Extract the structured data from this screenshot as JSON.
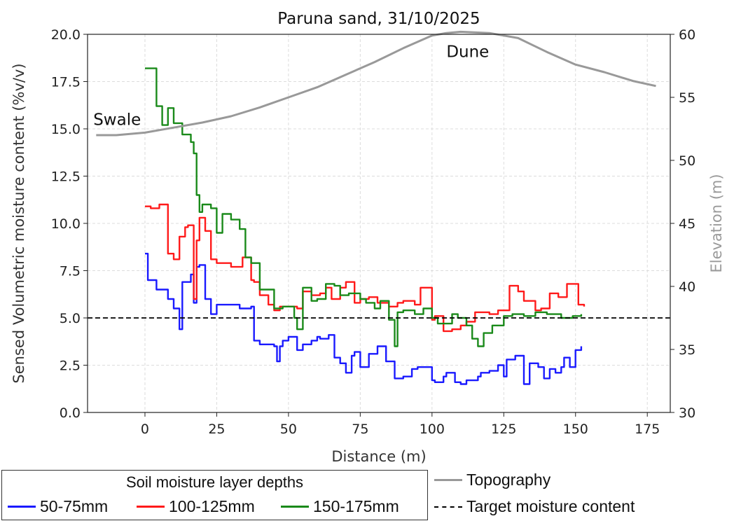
{
  "chart_data": {
    "type": "line",
    "title": "Paruna sand, 31/10/2025",
    "xlabel": "Distance (m)",
    "ylabel": "Sensed Volumetric moisture content (%v/v)",
    "y2label": "Elevation (m)",
    "xlim": [
      -20,
      183
    ],
    "ylim": [
      0,
      20
    ],
    "y2lim": [
      30,
      60
    ],
    "x_ticks": [
      0,
      25,
      50,
      75,
      100,
      125,
      150,
      175
    ],
    "y_ticks": [
      0.0,
      2.5,
      5.0,
      7.5,
      10.0,
      12.5,
      15.0,
      17.5,
      20.0
    ],
    "y_tick_labels": [
      "0.0",
      "2.5",
      "5.0",
      "7.5",
      "10.0",
      "12.5",
      "15.0",
      "17.5",
      "20.0"
    ],
    "y2_ticks": [
      30,
      35,
      40,
      45,
      50,
      55,
      60
    ],
    "grid": true,
    "annotations": [
      {
        "text": "Swale",
        "x": -18,
        "y": 15.2
      },
      {
        "text": "Dune",
        "x": 105,
        "y": 18.8
      }
    ],
    "target_moisture": 5.0,
    "legend": {
      "title": "Soil moisture layer depths",
      "placement": "bottom-left outside"
    },
    "series": [
      {
        "name": "50-75mm",
        "color": "#1a1aff",
        "axis": "left",
        "step": true,
        "x": [
          0,
          1,
          4,
          8,
          10,
          12,
          13,
          16,
          17,
          18,
          19,
          21,
          23,
          25,
          28,
          33,
          37,
          38,
          40,
          45,
          46,
          47,
          48,
          50,
          53,
          55,
          58,
          60,
          61,
          64,
          66,
          68,
          70,
          72,
          73,
          75,
          78,
          81,
          84,
          87,
          90,
          93,
          95,
          100,
          101,
          104,
          105,
          108,
          110,
          112,
          116,
          117,
          120,
          123,
          125,
          126,
          129,
          132,
          134,
          137,
          139,
          141,
          143,
          145,
          146,
          148,
          150,
          152
        ],
        "y": [
          8.4,
          7.0,
          6.5,
          6.0,
          5.5,
          4.4,
          6.9,
          7.3,
          5.8,
          7.7,
          7.8,
          6.0,
          5.2,
          5.7,
          5.7,
          5.5,
          5.6,
          3.8,
          3.6,
          3.5,
          2.7,
          3.5,
          3.8,
          4.0,
          3.3,
          3.6,
          3.8,
          4.0,
          3.9,
          4.1,
          2.9,
          2.6,
          2.1,
          3.0,
          3.2,
          2.4,
          3.1,
          3.5,
          2.7,
          1.8,
          1.9,
          2.3,
          2.4,
          1.7,
          1.6,
          1.9,
          2.1,
          1.6,
          1.5,
          1.7,
          1.9,
          2.1,
          2.2,
          2.5,
          1.9,
          2.8,
          3.0,
          1.5,
          2.6,
          2.4,
          1.8,
          2.3,
          2.1,
          2.4,
          2.9,
          2.4,
          3.3,
          3.5
        ]
      },
      {
        "name": "100-125mm",
        "color": "#ff1a1a",
        "axis": "left",
        "step": true,
        "x": [
          0,
          2,
          5,
          8,
          10,
          12,
          14,
          15,
          17,
          18,
          19,
          21,
          23,
          25,
          30,
          34,
          37,
          38,
          40,
          43,
          45,
          47,
          50,
          53,
          55,
          58,
          61,
          63,
          65,
          68,
          70,
          73,
          75,
          78,
          81,
          85,
          88,
          90,
          94,
          96,
          100,
          101,
          104,
          107,
          110,
          112,
          115,
          120,
          123,
          127,
          130,
          132,
          136,
          138,
          141,
          144,
          147,
          151,
          153
        ],
        "y": [
          10.9,
          10.8,
          11.0,
          8.4,
          8.1,
          9.3,
          9.8,
          9.9,
          6.0,
          9.1,
          10.3,
          9.6,
          8.1,
          7.9,
          7.7,
          8.2,
          7.0,
          6.9,
          6.2,
          5.7,
          5.4,
          5.6,
          5.6,
          5.5,
          6.4,
          6.2,
          6.3,
          6.6,
          6.0,
          6.6,
          6.9,
          5.8,
          6.0,
          6.1,
          5.8,
          5.6,
          5.8,
          5.9,
          5.7,
          6.6,
          4.9,
          5.1,
          4.3,
          4.4,
          4.6,
          4.8,
          5.3,
          5.2,
          5.4,
          6.7,
          6.4,
          5.9,
          5.4,
          5.5,
          6.3,
          6.1,
          6.8,
          5.7,
          5.6
        ]
      },
      {
        "name": "150-175mm",
        "color": "#1a8a1a",
        "axis": "left",
        "step": true,
        "x": [
          0,
          4,
          6,
          8,
          10,
          13,
          16,
          17,
          18,
          19,
          20,
          23,
          25,
          27,
          30,
          33,
          35,
          37,
          40,
          45,
          48,
          52,
          53,
          55,
          58,
          60,
          63,
          66,
          68,
          71,
          75,
          77,
          80,
          82,
          85,
          87,
          88,
          90,
          94,
          97,
          100,
          102,
          107,
          109,
          112,
          114,
          116,
          118,
          121,
          125,
          128,
          132,
          136,
          140,
          145,
          149,
          152
        ],
        "y": [
          18.2,
          16.2,
          15.2,
          16.1,
          15.3,
          14.7,
          14.3,
          13.7,
          11.5,
          10.6,
          11.0,
          10.8,
          9.5,
          10.5,
          10.2,
          9.7,
          8.2,
          7.9,
          6.5,
          5.5,
          5.6,
          5.0,
          4.4,
          6.6,
          5.9,
          6.0,
          6.8,
          6.7,
          6.2,
          6.3,
          6.0,
          5.8,
          5.5,
          5.9,
          4.9,
          3.5,
          5.3,
          5.4,
          5.2,
          5.5,
          5.0,
          4.7,
          5.2,
          5.0,
          4.6,
          3.9,
          3.5,
          4.2,
          4.6,
          5.1,
          5.2,
          5.1,
          5.3,
          5.2,
          5.0,
          5.1,
          5.2
        ]
      },
      {
        "name": "Topography",
        "color": "#999999",
        "axis": "right",
        "step": false,
        "x": [
          -17,
          -10,
          0,
          10,
          20,
          30,
          40,
          50,
          60,
          70,
          80,
          90,
          100,
          105,
          110,
          120,
          130,
          140,
          150,
          160,
          170,
          178
        ],
        "y": [
          52.0,
          52.0,
          52.2,
          52.6,
          53.0,
          53.5,
          54.2,
          55.0,
          55.8,
          56.8,
          57.8,
          58.9,
          59.9,
          60.1,
          60.2,
          60.1,
          59.7,
          58.6,
          57.6,
          57.0,
          56.3,
          55.9
        ]
      }
    ],
    "extra_legend": [
      {
        "name": "Topography",
        "color": "#999999",
        "style": "solid"
      },
      {
        "name": "Target moisture content",
        "color": "#000000",
        "style": "dashed"
      }
    ]
  }
}
